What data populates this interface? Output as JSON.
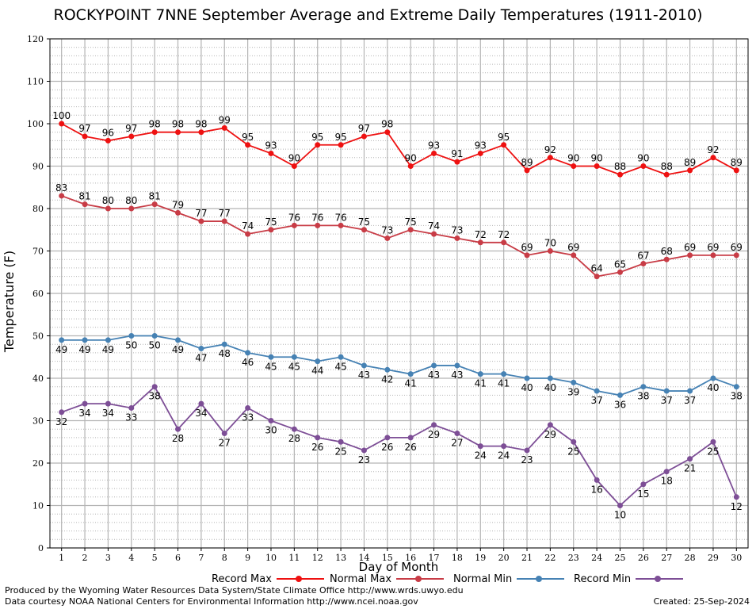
{
  "chart_data": {
    "type": "line",
    "title": "ROCKYPOINT 7NNE September Average and Extreme Daily Temperatures (1911-2010)",
    "xlabel": "Day of Month",
    "ylabel": "Temperature (F)",
    "ylim": [
      0,
      120
    ],
    "xlim": [
      1,
      30
    ],
    "yticks": [
      0,
      10,
      20,
      30,
      40,
      50,
      60,
      70,
      80,
      90,
      100,
      110,
      120
    ],
    "grid": true,
    "legend_position": "bottom",
    "x": [
      1,
      2,
      3,
      4,
      5,
      6,
      7,
      8,
      9,
      10,
      11,
      12,
      13,
      14,
      15,
      16,
      17,
      18,
      19,
      20,
      21,
      22,
      23,
      24,
      25,
      26,
      27,
      28,
      29,
      30
    ],
    "series": [
      {
        "name": "Record Max",
        "color": "#ee1111",
        "label_position": "above",
        "values": [
          100,
          97,
          96,
          97,
          98,
          98,
          98,
          99,
          95,
          93,
          90,
          95,
          95,
          97,
          98,
          90,
          93,
          91,
          93,
          95,
          89,
          92,
          90,
          90,
          88,
          90,
          88,
          89,
          92,
          89
        ]
      },
      {
        "name": "Normal Max",
        "color": "#c83c46",
        "label_position": "above",
        "values": [
          83,
          81,
          80,
          80,
          81,
          79,
          77,
          77,
          74,
          75,
          76,
          76,
          76,
          75,
          73,
          75,
          74,
          73,
          72,
          72,
          69,
          70,
          69,
          64,
          65,
          67,
          68,
          69,
          69,
          69
        ]
      },
      {
        "name": "Normal Min",
        "color": "#4682b4",
        "label_position": "below",
        "values": [
          49,
          49,
          49,
          50,
          50,
          49,
          47,
          48,
          46,
          45,
          45,
          44,
          45,
          43,
          42,
          41,
          43,
          43,
          41,
          41,
          40,
          40,
          39,
          37,
          36,
          38,
          37,
          37,
          40,
          38
        ]
      },
      {
        "name": "Record Min",
        "color": "#7d4e96",
        "label_position": "below",
        "values": [
          32,
          34,
          34,
          33,
          38,
          28,
          34,
          27,
          33,
          30,
          28,
          26,
          25,
          23,
          26,
          26,
          29,
          27,
          24,
          24,
          23,
          29,
          25,
          16,
          10,
          15,
          18,
          21,
          25,
          12
        ]
      }
    ]
  },
  "footer": {
    "produced": "Produced by the Wyoming Water Resources Data System/State Climate Office http://www.wrds.uwyo.edu",
    "courtesy": "Data courtesy NOAA National Centers for Environmental Information http://www.ncei.noaa.gov",
    "created": "Created:  25-Sep-2024"
  }
}
